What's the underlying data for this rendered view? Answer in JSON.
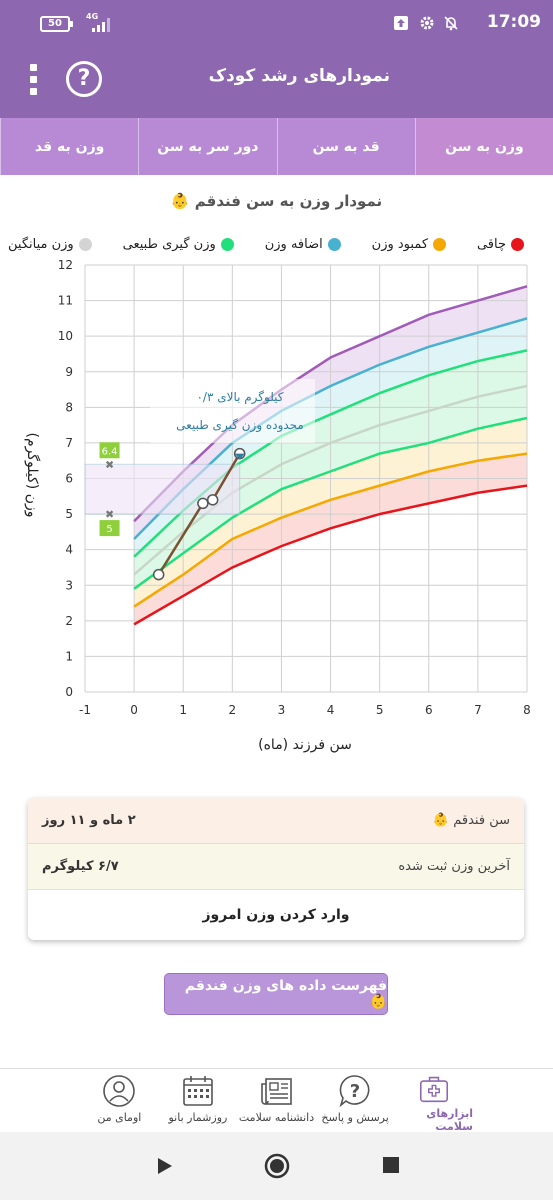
{
  "status_bar": {
    "battery": "50",
    "network": "4G",
    "time": "17:09"
  },
  "app_bar": {
    "title": "نمودارهای رشد کودک"
  },
  "tabs": [
    {
      "label": "وزن به سن",
      "active": true
    },
    {
      "label": "قد به سن",
      "active": false
    },
    {
      "label": "دور سر به سن",
      "active": false
    },
    {
      "label": "وزن به قد",
      "active": false
    }
  ],
  "chart_title": "نمودار وزن به سن فندقم 👶",
  "legend": [
    {
      "label": "چاقی",
      "color": "#e8141b"
    },
    {
      "label": "کمبود وزن",
      "color": "#f5a800"
    },
    {
      "label": "اضافه وزن",
      "color": "#48b1cf"
    },
    {
      "label": "وزن گیری طبیعی",
      "color": "#21e07b"
    },
    {
      "label": "وزن میانگین",
      "color": "#d4d4d4"
    }
  ],
  "chart_data": {
    "type": "line",
    "xlabel": "سن فرزند (ماه)",
    "ylabel": "وزن (کیلوگرم)",
    "xlim": [
      -1,
      8
    ],
    "ylim": [
      0,
      12
    ],
    "x_ticks": [
      "-1",
      "0",
      "1",
      "2",
      "3",
      "4",
      "5",
      "6",
      "7",
      "8"
    ],
    "y_ticks": [
      "0",
      "1",
      "2",
      "3",
      "4",
      "5",
      "6",
      "7",
      "8",
      "9",
      "10",
      "11",
      "12"
    ],
    "x": [
      0,
      1,
      2,
      3,
      4,
      5,
      6,
      7,
      8
    ],
    "series": [
      {
        "color": "#e8141b",
        "values": [
          1.9,
          2.7,
          3.5,
          4.1,
          4.6,
          5.0,
          5.3,
          5.6,
          5.8
        ]
      },
      {
        "color": "#f5a800",
        "values": [
          2.4,
          3.3,
          4.3,
          4.9,
          5.4,
          5.8,
          6.2,
          6.5,
          6.7
        ]
      },
      {
        "color": "#21e07b",
        "values": [
          2.9,
          3.9,
          4.9,
          5.7,
          6.2,
          6.7,
          7.0,
          7.4,
          7.7
        ]
      },
      {
        "color": "#c8d6c8",
        "values": [
          3.3,
          4.5,
          5.6,
          6.4,
          7.0,
          7.5,
          7.9,
          8.3,
          8.6
        ]
      },
      {
        "color": "#21e07b",
        "values": [
          3.8,
          5.1,
          6.3,
          7.2,
          7.8,
          8.4,
          8.9,
          9.3,
          9.6
        ]
      },
      {
        "color": "#48b1cf",
        "values": [
          4.3,
          5.7,
          7.0,
          7.9,
          8.6,
          9.2,
          9.7,
          10.1,
          10.5
        ]
      },
      {
        "color": "#a05cb8",
        "values": [
          4.8,
          6.2,
          7.5,
          8.5,
          9.4,
          10.0,
          10.6,
          11.0,
          11.4
        ]
      }
    ],
    "child_series": {
      "color": "#7a5230",
      "x": [
        0.5,
        1.4,
        1.6,
        2.15
      ],
      "values": [
        3.3,
        5.3,
        5.4,
        6.7
      ]
    },
    "range_markers": [
      6.4,
      5.0
    ],
    "range_labels": [
      "6.4",
      "5"
    ],
    "annotation": [
      "۰/۳ کیلوگرم بالای",
      "محدوده وزن گیری طبیعی"
    ]
  },
  "info_card": {
    "age_label": "سن فندقم 👶",
    "age_value": "۲ ماه و ۱۱ روز",
    "weight_label": "آخرین وزن ثبت شده",
    "weight_value": "۶/۷ کیلوگرم",
    "enter_weight": "وارد کردن وزن امروز"
  },
  "list_button": "فهرست داده های وزن فندقم 👶",
  "bottom_nav": [
    {
      "label": "ابزارهای سلامت",
      "icon": "medical-kit-icon",
      "active": true
    },
    {
      "label": "پرسش و پاسخ",
      "icon": "question-bubble-icon",
      "active": false
    },
    {
      "label": "دانشنامه سلامت",
      "icon": "newspaper-icon",
      "active": false
    },
    {
      "label": "روزشمار بانو",
      "icon": "calendar-icon",
      "active": false
    },
    {
      "label": "اومای من",
      "icon": "user-profile-icon",
      "active": false
    }
  ]
}
